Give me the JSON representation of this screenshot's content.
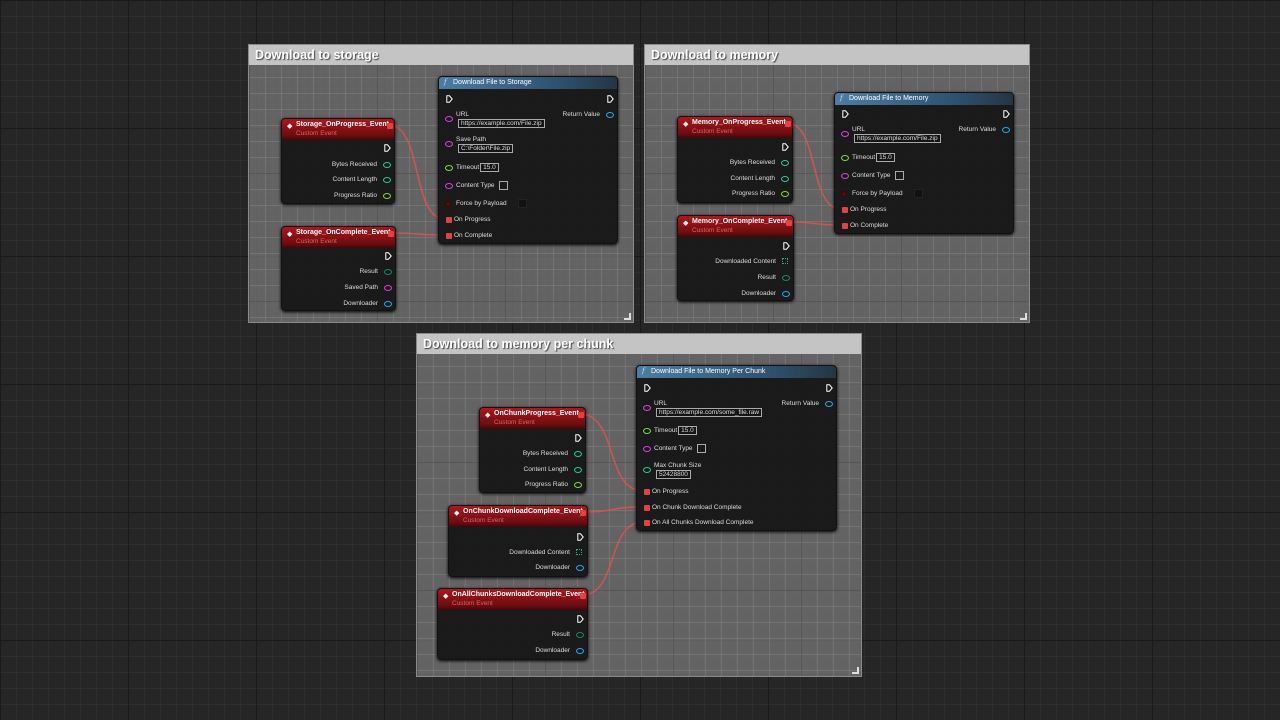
{
  "comments": [
    {
      "title": "Download to storage"
    },
    {
      "title": "Download to memory"
    },
    {
      "title": "Download to memory per chunk"
    }
  ],
  "colors": {
    "exec": "#ffffff",
    "float": "#7ee03a",
    "int": "#20d0a0",
    "string": "#e040e0",
    "object": "#29a8f0",
    "bool": "#5a0a0a",
    "delegate": "#e84040",
    "bytes": "#20b08a",
    "wire": "#e05050"
  },
  "events": [
    {
      "title": "Storage_OnProgress_Event",
      "subtitle": "Custom Event",
      "outputs": [
        {
          "label": "Bytes Received",
          "type": "int"
        },
        {
          "label": "Content Length",
          "type": "int"
        },
        {
          "label": "Progress Ratio",
          "type": "float"
        }
      ]
    },
    {
      "title": "Storage_OnComplete_Event",
      "subtitle": "Custom Event",
      "outputs": [
        {
          "label": "Result",
          "type": "bytes"
        },
        {
          "label": "Saved Path",
          "type": "string"
        },
        {
          "label": "Downloader",
          "type": "object"
        }
      ]
    },
    {
      "title": "Memory_OnProgress_Event",
      "subtitle": "Custom Event",
      "outputs": [
        {
          "label": "Bytes Received",
          "type": "int"
        },
        {
          "label": "Content Length",
          "type": "int"
        },
        {
          "label": "Progress Ratio",
          "type": "float"
        }
      ]
    },
    {
      "title": "Memory_OnComplete_Event",
      "subtitle": "Custom Event",
      "outputs": [
        {
          "label": "Downloaded Content",
          "type": "array"
        },
        {
          "label": "Result",
          "type": "bytes"
        },
        {
          "label": "Downloader",
          "type": "object"
        }
      ]
    },
    {
      "title": "OnChunkProgress_Event",
      "subtitle": "Custom Event",
      "outputs": [
        {
          "label": "Bytes Received",
          "type": "int"
        },
        {
          "label": "Content Length",
          "type": "int"
        },
        {
          "label": "Progress Ratio",
          "type": "float"
        }
      ]
    },
    {
      "title": "OnChunkDownloadComplete_Event",
      "subtitle": "Custom Event",
      "outputs": [
        {
          "label": "Downloaded Content",
          "type": "array"
        },
        {
          "label": "Downloader",
          "type": "object"
        }
      ]
    },
    {
      "title": "OnAllChunksDownloadComplete_Event",
      "subtitle": "Custom Event",
      "outputs": [
        {
          "label": "Result",
          "type": "bytes"
        },
        {
          "label": "Downloader",
          "type": "object"
        }
      ]
    }
  ],
  "functions": [
    {
      "title": "Download File to Storage",
      "return_label": "Return Value",
      "inputs": [
        {
          "label": "URL",
          "type": "string",
          "value": "https://example.com/File.zip",
          "stacked": true
        },
        {
          "label": "Save Path",
          "type": "string",
          "value": "C:\\Folder\\File.zip",
          "stacked": true
        },
        {
          "label": "Timeout",
          "type": "float",
          "value": "15.0"
        },
        {
          "label": "Content Type",
          "type": "string",
          "value": ""
        },
        {
          "label": "Force by Payload",
          "type": "bool",
          "checkbox": true
        },
        {
          "label": "On Progress",
          "type": "delegate"
        },
        {
          "label": "On Complete",
          "type": "delegate"
        }
      ]
    },
    {
      "title": "Download File to Memory",
      "return_label": "Return Value",
      "inputs": [
        {
          "label": "URL",
          "type": "string",
          "value": "https://example.com/File.zip",
          "stacked": true
        },
        {
          "label": "Timeout",
          "type": "float",
          "value": "15.0"
        },
        {
          "label": "Content Type",
          "type": "string",
          "value": ""
        },
        {
          "label": "Force by Payload",
          "type": "bool",
          "checkbox": true
        },
        {
          "label": "On Progress",
          "type": "delegate"
        },
        {
          "label": "On Complete",
          "type": "delegate"
        }
      ]
    },
    {
      "title": "Download File to Memory Per Chunk",
      "return_label": "Return Value",
      "inputs": [
        {
          "label": "URL",
          "type": "string",
          "value": "https://example.com/some_file.raw",
          "stacked": true
        },
        {
          "label": "Timeout",
          "type": "float",
          "value": "15.0"
        },
        {
          "label": "Content Type",
          "type": "string",
          "value": ""
        },
        {
          "label": "Max Chunk Size",
          "type": "int",
          "value": "52428800",
          "stacked": true
        },
        {
          "label": "On Progress",
          "type": "delegate"
        },
        {
          "label": "On Chunk Download Complete",
          "type": "delegate"
        },
        {
          "label": "On All Chunks Download Complete",
          "type": "delegate"
        }
      ]
    }
  ]
}
